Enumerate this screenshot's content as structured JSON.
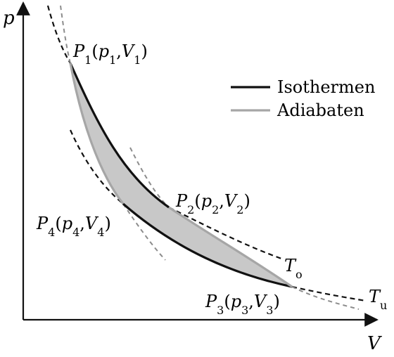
{
  "axes": {
    "y_label": "p",
    "x_label": "V"
  },
  "legend": {
    "items": [
      {
        "label": "Isothermen",
        "color": "#111111"
      },
      {
        "label": "Adiabaten",
        "color": "#a6a6a6"
      }
    ]
  },
  "points": [
    {
      "name": "P",
      "sub": "1",
      "p": "p",
      "psub": "1",
      "v": "V",
      "vsub": "1"
    },
    {
      "name": "P",
      "sub": "2",
      "p": "p",
      "psub": "2",
      "v": "V",
      "vsub": "2"
    },
    {
      "name": "P",
      "sub": "3",
      "p": "p",
      "psub": "3",
      "v": "V",
      "vsub": "3"
    },
    {
      "name": "P",
      "sub": "4",
      "p": "p",
      "psub": "4",
      "v": "V",
      "vsub": "4"
    }
  ],
  "temperatures": [
    {
      "symbol": "T",
      "sub": "o"
    },
    {
      "symbol": "T",
      "sub": "u"
    }
  ],
  "colors": {
    "isotherm": "#111111",
    "adiabat": "#a6a6a6",
    "cycle_fill": "#c8c8c8",
    "axis": "#111111"
  }
}
